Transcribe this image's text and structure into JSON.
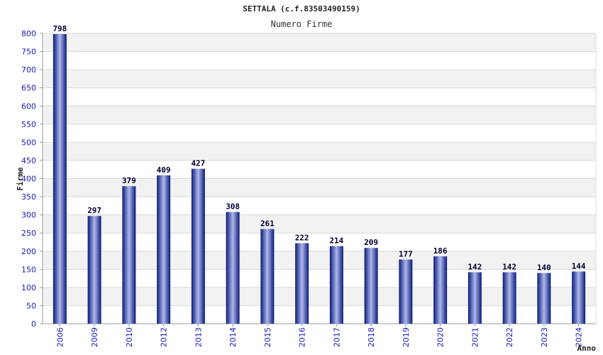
{
  "chart_data": {
    "type": "bar",
    "title": "SETTALA (c.f.83503490159)",
    "subtitle": "Numero Firme",
    "xlabel": "Anno",
    "ylabel": "Firme",
    "categories": [
      "2006",
      "2009",
      "2010",
      "2012",
      "2013",
      "2014",
      "2015",
      "2016",
      "2017",
      "2018",
      "2019",
      "2020",
      "2021",
      "2022",
      "2023",
      "2024"
    ],
    "values": [
      798,
      297,
      379,
      409,
      427,
      308,
      261,
      222,
      214,
      209,
      177,
      186,
      142,
      142,
      140,
      144
    ],
    "ylim": [
      0,
      800
    ],
    "yticks": [
      0,
      50,
      100,
      150,
      200,
      250,
      300,
      350,
      400,
      450,
      500,
      550,
      600,
      650,
      700,
      750,
      800
    ],
    "grid": true,
    "legend": "none",
    "colors": {
      "bar_dark": "#0a1a7a",
      "bar_light": "#aeb8ec",
      "tick_label": "#1a1ab4",
      "value_label": "#000033",
      "band": "#f2f2f2",
      "grid": "#d8d8d8"
    }
  }
}
